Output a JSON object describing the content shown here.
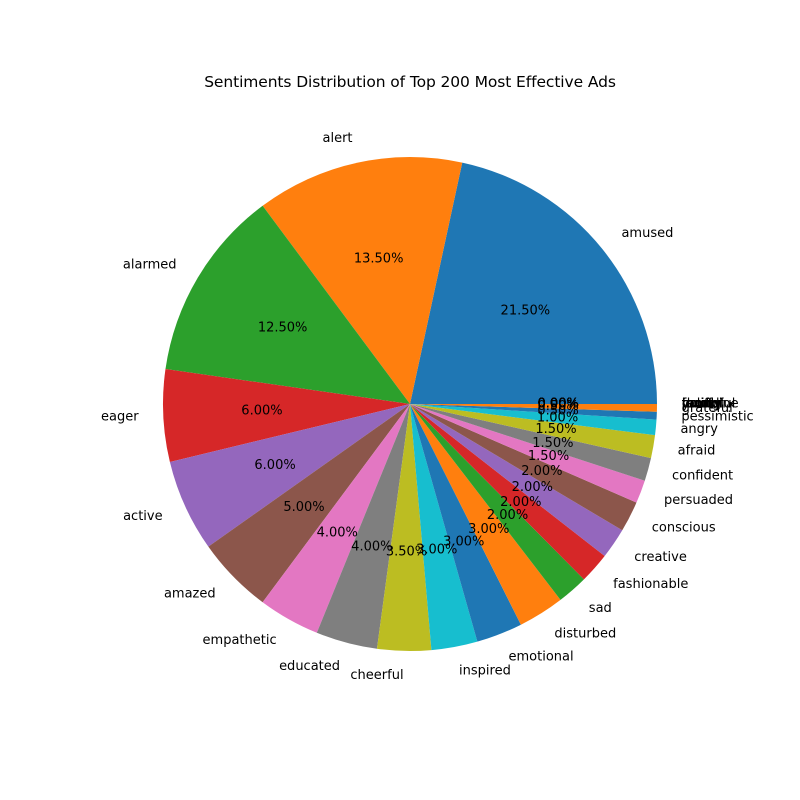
{
  "chart_data": {
    "type": "pie",
    "title": "Sentiments Distribution of Top 200 Most Effective Ads",
    "start_angle_deg": 0,
    "direction": "counterclockwise",
    "legend": "none",
    "slices": [
      {
        "label": "amused",
        "value": 21.5,
        "pct_label": "21.50%",
        "color": "#1f77b4"
      },
      {
        "label": "alert",
        "value": 13.5,
        "pct_label": "13.50%",
        "color": "#ff7f0e"
      },
      {
        "label": "alarmed",
        "value": 12.5,
        "pct_label": "12.50%",
        "color": "#2ca02c"
      },
      {
        "label": "eager",
        "value": 6.0,
        "pct_label": "6.00%",
        "color": "#d62728"
      },
      {
        "label": "active",
        "value": 6.0,
        "pct_label": "6.00%",
        "color": "#9467bd"
      },
      {
        "label": "amazed",
        "value": 5.0,
        "pct_label": "5.00%",
        "color": "#8c564b"
      },
      {
        "label": "empathetic",
        "value": 4.0,
        "pct_label": "4.00%",
        "color": "#e377c2"
      },
      {
        "label": "educated",
        "value": 4.0,
        "pct_label": "4.00%",
        "color": "#7f7f7f"
      },
      {
        "label": "cheerful",
        "value": 3.5,
        "pct_label": "3.50%",
        "color": "#bcbd22"
      },
      {
        "label": "inspired",
        "value": 3.0,
        "pct_label": "3.00%",
        "color": "#17becf"
      },
      {
        "label": "emotional",
        "value": 3.0,
        "pct_label": "3.00%",
        "color": "#1f77b4"
      },
      {
        "label": "disturbed",
        "value": 3.0,
        "pct_label": "3.00%",
        "color": "#ff7f0e"
      },
      {
        "label": "sad",
        "value": 2.0,
        "pct_label": "2.00%",
        "color": "#2ca02c"
      },
      {
        "label": "fashionable",
        "value": 2.0,
        "pct_label": "2.00%",
        "color": "#d62728"
      },
      {
        "label": "creative",
        "value": 2.0,
        "pct_label": "2.00%",
        "color": "#9467bd"
      },
      {
        "label": "conscious",
        "value": 2.0,
        "pct_label": "2.00%",
        "color": "#8c564b"
      },
      {
        "label": "persuaded",
        "value": 1.5,
        "pct_label": "1.50%",
        "color": "#e377c2"
      },
      {
        "label": "confident",
        "value": 1.5,
        "pct_label": "1.50%",
        "color": "#7f7f7f"
      },
      {
        "label": "afraid",
        "value": 1.5,
        "pct_label": "1.50%",
        "color": "#bcbd22"
      },
      {
        "label": "angry",
        "value": 1.0,
        "pct_label": "1.00%",
        "color": "#17becf"
      },
      {
        "label": "pessimistic",
        "value": 0.5,
        "pct_label": "0.50%",
        "color": "#1f77b4"
      },
      {
        "label": "grateful",
        "value": 0.5,
        "pct_label": "0.50%",
        "color": "#ff7f0e"
      },
      {
        "label": "calm",
        "value": 0.0,
        "pct_label": "0.00%",
        "color": "#2ca02c"
      },
      {
        "label": "youthful",
        "value": 0.0,
        "pct_label": "0.00%",
        "color": "#d62728"
      },
      {
        "label": "proud",
        "value": 0.0,
        "pct_label": "0.00%",
        "color": "#9467bd"
      },
      {
        "label": "feminine",
        "value": 0.0,
        "pct_label": "0.00%",
        "color": "#8c564b"
      },
      {
        "label": "loving",
        "value": 0.0,
        "pct_label": "0.00%",
        "color": "#e377c2"
      },
      {
        "label": "thrifty",
        "value": 0.0,
        "pct_label": "0.00%",
        "color": "#7f7f7f"
      },
      {
        "label": "manly",
        "value": 0.0,
        "pct_label": "0.00%",
        "color": "#bcbd22"
      },
      {
        "label": "fearful",
        "value": 0.0,
        "pct_label": "0.00%",
        "color": "#17becf"
      }
    ]
  }
}
